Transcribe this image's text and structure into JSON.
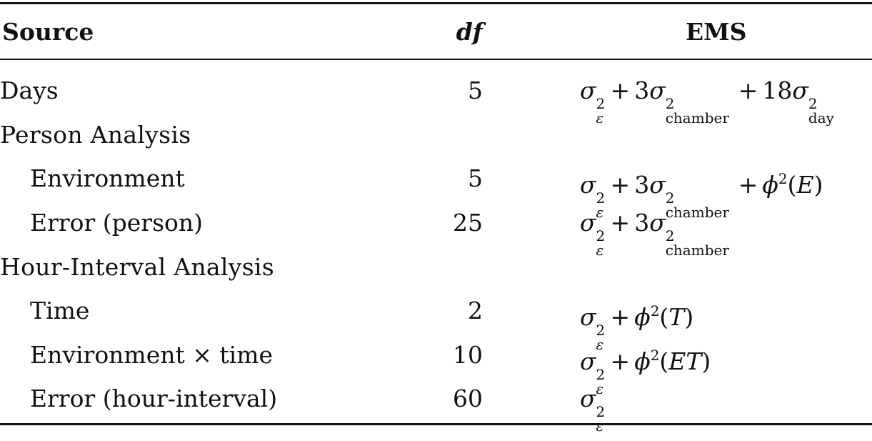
{
  "headers": {
    "source": "Source",
    "df": "df",
    "ems": "EMS"
  },
  "rows": [
    {
      "source": "Days",
      "df": "5",
      "type": "item",
      "indent": false,
      "ems": "days"
    },
    {
      "source": "Person Analysis",
      "df": "",
      "type": "section",
      "indent": false,
      "ems": ""
    },
    {
      "source": "Environment",
      "df": "5",
      "type": "item",
      "indent": true,
      "ems": "environment"
    },
    {
      "source": "Error (person)",
      "df": "25",
      "type": "item",
      "indent": true,
      "ems": "error_person"
    },
    {
      "source": "Hour-Interval Analysis",
      "df": "",
      "type": "section",
      "indent": false,
      "ems": ""
    },
    {
      "source": "Time",
      "df": "2",
      "type": "item",
      "indent": true,
      "ems": "time"
    },
    {
      "source": "Environment × time",
      "df": "10",
      "type": "item",
      "indent": true,
      "ems": "env_time"
    },
    {
      "source": "Error (hour-interval)",
      "df": "60",
      "type": "item",
      "indent": true,
      "ems": "error_hour"
    }
  ],
  "ems_terms": {
    "sigma": "σ",
    "epsilon": "ε",
    "phi": "ϕ",
    "chamber": "chamber",
    "day": "day",
    "two": "2",
    "plus": "+",
    "three": "3",
    "eighteen": "18",
    "E": "E",
    "T": "T",
    "ET": "ET",
    "lparen": "(",
    "rparen": ")"
  }
}
